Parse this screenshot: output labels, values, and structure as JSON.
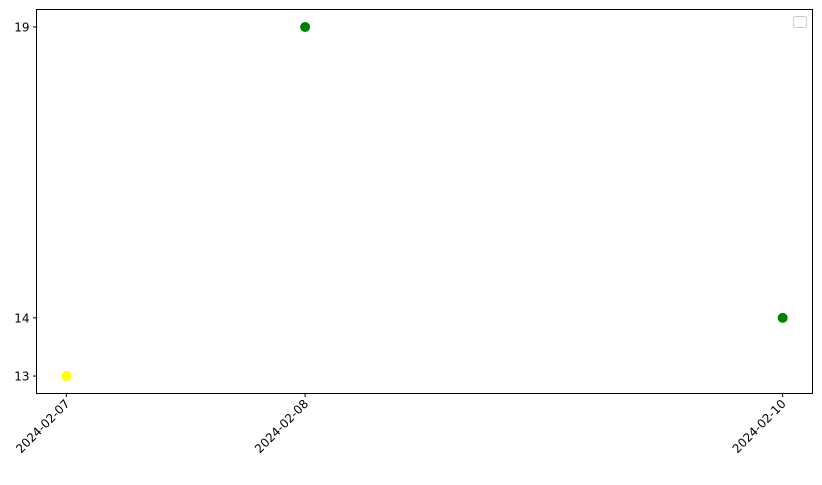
{
  "chart_data": {
    "type": "scatter",
    "title": "",
    "xlabel": "",
    "ylabel": "",
    "x_tick_labels": [
      "2024-02-07",
      "2024-02-08",
      "2024-02-10"
    ],
    "y_tick_labels": [
      "13",
      "14",
      "19"
    ],
    "yticks": [
      13,
      14,
      19
    ],
    "xlim": [
      "2024-02-06 21:00",
      "2024-02-10 03:00"
    ],
    "ylim": [
      12.7,
      19.3
    ],
    "grid": false,
    "legend": "top-right",
    "points": [
      {
        "x": "2024-02-07",
        "y": 13,
        "color": "#ffff00"
      },
      {
        "x": "2024-02-08",
        "y": 19,
        "color": "#008000"
      },
      {
        "x": "2024-02-10",
        "y": 14,
        "color": "#008000"
      }
    ]
  }
}
